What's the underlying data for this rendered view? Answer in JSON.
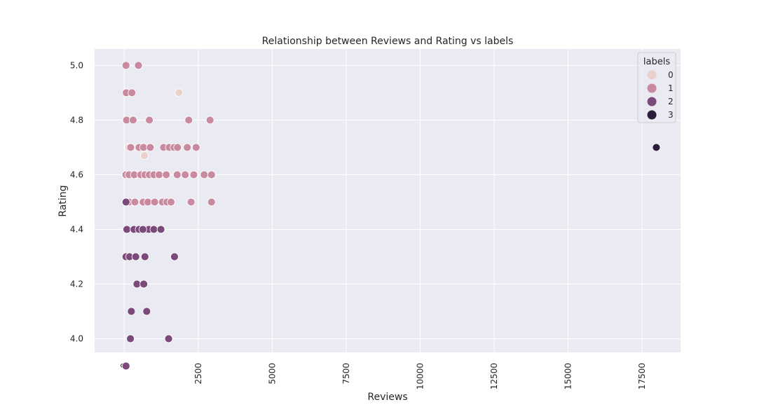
{
  "chart_data": {
    "type": "scatter",
    "title": "Relationship between Reviews and Rating vs labels",
    "xlabel": "Reviews",
    "ylabel": "Rating",
    "xlim": [
      -1000,
      18800
    ],
    "ylim": [
      3.95,
      5.06
    ],
    "xticks": [
      "0",
      "2500",
      "5000",
      "7500",
      "10000",
      "12500",
      "15000",
      "17500"
    ],
    "xtick_values": [
      0,
      2500,
      5000,
      7500,
      10000,
      12500,
      15000,
      17500
    ],
    "yticks": [
      "4.0",
      "4.2",
      "4.4",
      "4.6",
      "4.8",
      "5.0"
    ],
    "ytick_values": [
      4.0,
      4.2,
      4.4,
      4.6,
      4.8,
      5.0
    ],
    "grid": true,
    "legend": {
      "title": "labels",
      "position": "top-right",
      "entries": [
        "0",
        "1",
        "2",
        "3"
      ]
    },
    "series": [
      {
        "name": "0",
        "color": "#ecd0cb",
        "points": [
          [
            80,
            4.9
          ],
          [
            320,
            4.5
          ],
          [
            500,
            4.7
          ],
          [
            680,
            4.67
          ],
          [
            1850,
            4.9
          ],
          [
            400,
            4.6
          ],
          [
            150,
            4.7
          ],
          [
            1200,
            4.6
          ]
        ]
      },
      {
        "name": "1",
        "color": "#c98aa0",
        "points": [
          [
            60,
            5.0
          ],
          [
            480,
            5.0
          ],
          [
            70,
            4.9
          ],
          [
            260,
            4.9
          ],
          [
            80,
            4.8
          ],
          [
            300,
            4.8
          ],
          [
            850,
            4.8
          ],
          [
            2180,
            4.8
          ],
          [
            2900,
            4.8
          ],
          [
            220,
            4.7
          ],
          [
            500,
            4.7
          ],
          [
            650,
            4.7
          ],
          [
            880,
            4.7
          ],
          [
            1330,
            4.7
          ],
          [
            1520,
            4.7
          ],
          [
            1680,
            4.7
          ],
          [
            1800,
            4.7
          ],
          [
            2130,
            4.7
          ],
          [
            2430,
            4.7
          ],
          [
            60,
            4.6
          ],
          [
            160,
            4.6
          ],
          [
            340,
            4.6
          ],
          [
            560,
            4.6
          ],
          [
            700,
            4.6
          ],
          [
            850,
            4.6
          ],
          [
            1000,
            4.6
          ],
          [
            1180,
            4.6
          ],
          [
            1420,
            4.6
          ],
          [
            1790,
            4.6
          ],
          [
            2060,
            4.6
          ],
          [
            2350,
            4.6
          ],
          [
            2700,
            4.6
          ],
          [
            2950,
            4.6
          ],
          [
            170,
            4.5
          ],
          [
            360,
            4.5
          ],
          [
            640,
            4.5
          ],
          [
            800,
            4.5
          ],
          [
            1030,
            4.5
          ],
          [
            1290,
            4.5
          ],
          [
            1440,
            4.5
          ],
          [
            1580,
            4.5
          ],
          [
            2260,
            4.5
          ],
          [
            2950,
            4.5
          ]
        ]
      },
      {
        "name": "2",
        "color": "#7c4a7a",
        "points": [
          [
            60,
            4.5
          ],
          [
            90,
            4.4
          ],
          [
            330,
            4.4
          ],
          [
            500,
            4.4
          ],
          [
            750,
            4.4
          ],
          [
            830,
            4.4
          ],
          [
            1000,
            4.4
          ],
          [
            1240,
            4.4
          ],
          [
            630,
            4.4
          ],
          [
            60,
            4.3
          ],
          [
            180,
            4.3
          ],
          [
            390,
            4.3
          ],
          [
            700,
            4.3
          ],
          [
            1700,
            4.3
          ],
          [
            430,
            4.2
          ],
          [
            660,
            4.2
          ],
          [
            240,
            4.1
          ],
          [
            760,
            4.1
          ],
          [
            210,
            4.0
          ],
          [
            1500,
            4.0
          ],
          [
            60,
            3.9
          ]
        ]
      },
      {
        "name": "3",
        "color": "#2c1d3a",
        "points": [
          [
            17980,
            4.7
          ]
        ]
      }
    ]
  }
}
